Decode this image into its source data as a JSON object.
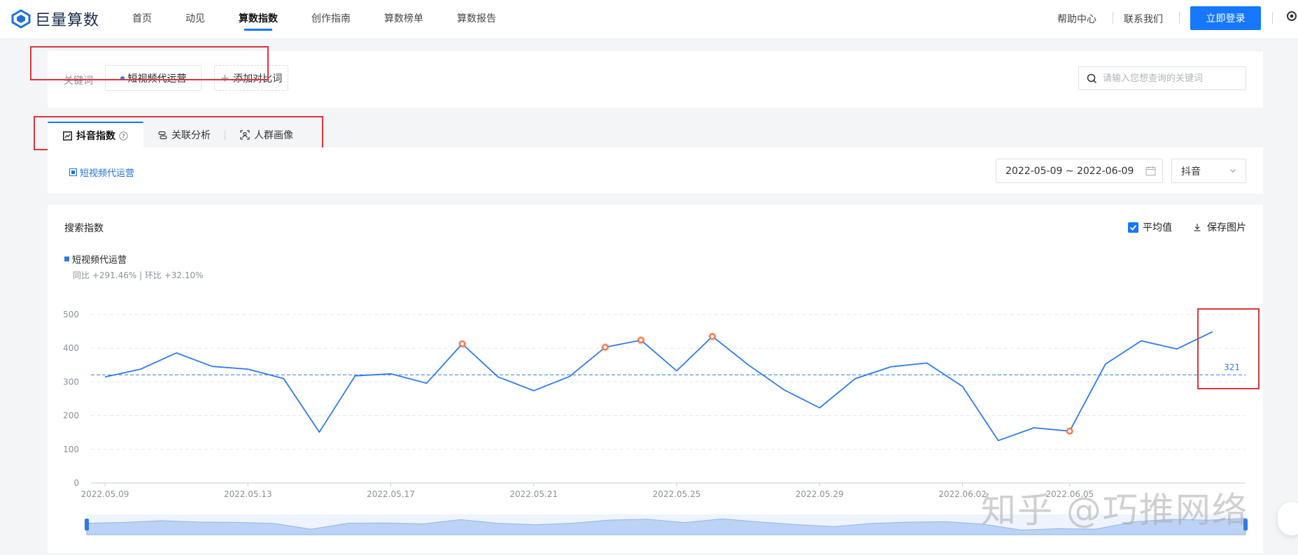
{
  "brand": {
    "name": "巨量算数"
  },
  "nav": {
    "items": [
      {
        "label": "首页",
        "active": false
      },
      {
        "label": "动见",
        "active": false
      },
      {
        "label": "算数指数",
        "active": true
      },
      {
        "label": "创作指南",
        "active": false
      },
      {
        "label": "算数榜单",
        "active": false
      },
      {
        "label": "算数报告",
        "active": false
      }
    ],
    "help": "帮助中心",
    "contact": "联系我们",
    "login": "立即登录"
  },
  "keyword_bar": {
    "label": "关键词",
    "keyword": "短视频代运营",
    "add_compare": "添加对比词",
    "search_placeholder": "请输入您想查询的关键词"
  },
  "tabs": [
    {
      "label": "抖音指数",
      "active": true
    },
    {
      "label": "关联分析",
      "active": false
    },
    {
      "label": "人群画像",
      "active": false
    }
  ],
  "filters": {
    "legend_keyword": "短视频代运营",
    "date_range": "2022-05-09 ~ 2022-06-09",
    "platform": "抖音"
  },
  "chart_panel": {
    "title": "搜索指数",
    "average_toggle": "平均值",
    "save_image": "保存图片",
    "series_name": "短视频代运营",
    "comparison": "同比 +291.46% | 环比 +32.10%",
    "average_label": "321"
  },
  "watermark": "知乎 @巧推网络",
  "colors": {
    "accent": "#1677ff",
    "line": "#2e7be6",
    "highlight": "#f36f43",
    "annotation": "#d9363e"
  },
  "chart_data": {
    "type": "line",
    "title": "搜索指数",
    "x": [
      "2022.05.09",
      "2022.05.10",
      "2022.05.11",
      "2022.05.12",
      "2022.05.13",
      "2022.05.14",
      "2022.05.15",
      "2022.05.16",
      "2022.05.17",
      "2022.05.18",
      "2022.05.19",
      "2022.05.20",
      "2022.05.21",
      "2022.05.22",
      "2022.05.23",
      "2022.05.24",
      "2022.05.25",
      "2022.05.26",
      "2022.05.27",
      "2022.05.28",
      "2022.05.29",
      "2022.05.30",
      "2022.05.31",
      "2022.06.01",
      "2022.06.02",
      "2022.06.03",
      "2022.06.04",
      "2022.06.05",
      "2022.06.06",
      "2022.06.07",
      "2022.06.08",
      "2022.06.09"
    ],
    "series": [
      {
        "name": "短视频代运营",
        "values": [
          315,
          338,
          386,
          346,
          338,
          310,
          151,
          318,
          324,
          296,
          413,
          315,
          274,
          316,
          403,
          424,
          333,
          435,
          351,
          277,
          223,
          310,
          345,
          356,
          287,
          126,
          164,
          154,
          353,
          422,
          398,
          449
        ]
      }
    ],
    "highlighted_points": [
      "2022.05.19",
      "2022.05.23",
      "2022.05.24",
      "2022.05.26",
      "2022.06.05"
    ],
    "average": 321,
    "x_tick_labels": [
      "2022.05.09",
      "2022.05.13",
      "2022.05.17",
      "2022.05.21",
      "2022.05.25",
      "2022.05.29",
      "2022.06.02",
      "2022.06.05"
    ],
    "y_ticks": [
      0,
      100,
      200,
      300,
      400,
      500
    ],
    "ylim": [
      0,
      500
    ],
    "grid": true,
    "legend": "top-left"
  }
}
